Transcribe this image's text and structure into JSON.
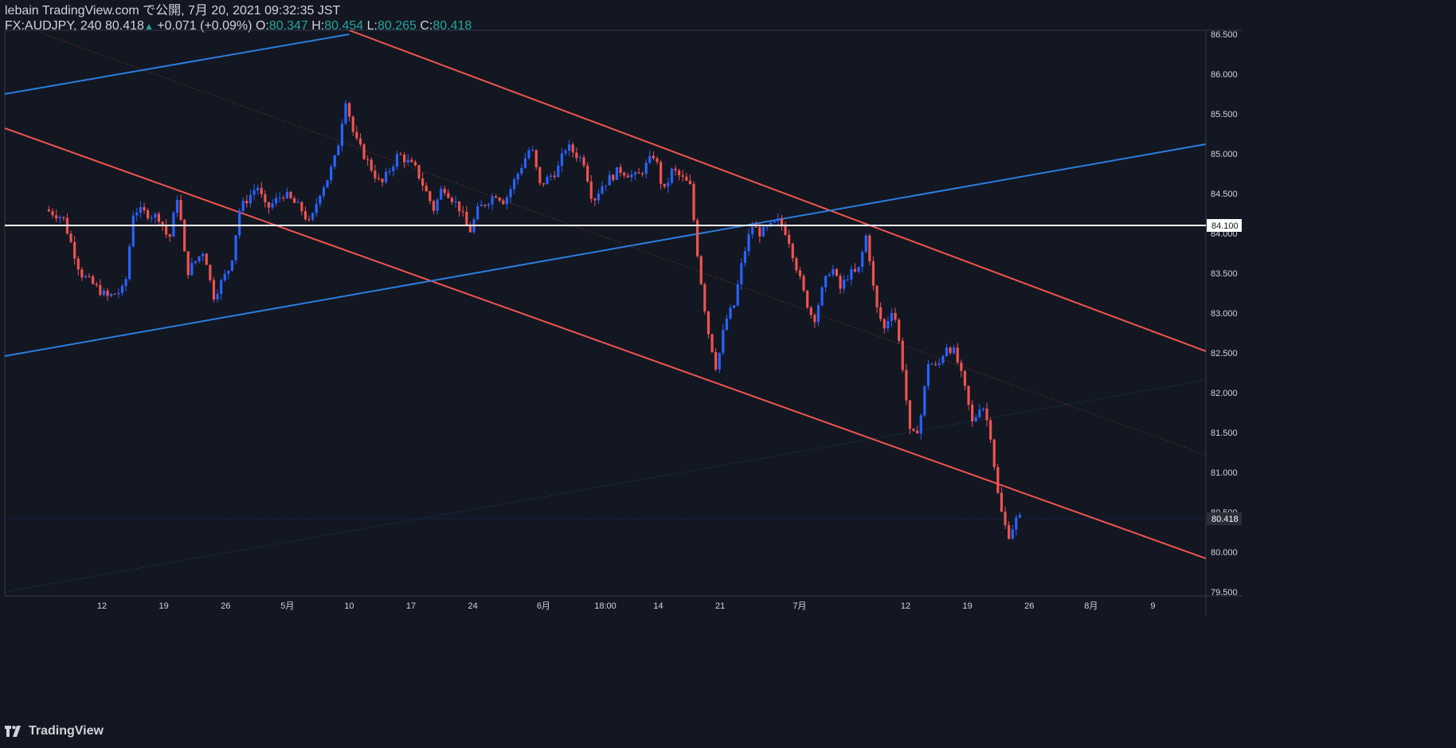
{
  "header": {
    "line1": "lebain TradingView.com で公開, 7月 20, 2021 09:32:35 JST",
    "symbol": "FX:AUDJPY, 240",
    "last": "80.418",
    "arrow": "▲",
    "change": "+0.071 (+0.09%)",
    "o_label": "O:",
    "o_value": "80.347",
    "h_label": "H:",
    "h_value": "80.454",
    "l_label": "L:",
    "l_value": "80.265",
    "c_label": "C:",
    "c_value": "80.418"
  },
  "footer": {
    "brand": "TradingView"
  },
  "colors": {
    "background": "#131722",
    "up": "#2962ff",
    "down": "#ef5350",
    "axis_text": "#d1d4dc",
    "trend_red": "#f0554f",
    "trend_blue": "#2b7de0"
  },
  "chart_data": {
    "type": "candlestick",
    "ylim": [
      79.45,
      86.55
    ],
    "y_ticks": [
      "79.500",
      "80.000",
      "80.500",
      "81.000",
      "81.500",
      "82.000",
      "82.500",
      "83.000",
      "83.500",
      "84.000",
      "84.500",
      "85.000",
      "85.500",
      "86.000",
      "86.500"
    ],
    "x_ticks": [
      "12",
      "19",
      "26",
      "5月",
      "10",
      "17",
      "24",
      "6月",
      "18:00",
      "14",
      "21",
      "7月",
      "12",
      "19",
      "26",
      "8月",
      "9"
    ],
    "horizontal_line": {
      "value": 84.1,
      "label": "84.100"
    },
    "last_price": {
      "value": 80.418,
      "label": "80.418"
    },
    "price_path": [
      [
        "2021-04-06",
        84.3
      ],
      [
        "2021-04-08",
        84.2
      ],
      [
        "2021-04-10",
        83.5
      ],
      [
        "2021-04-13",
        83.2
      ],
      [
        "2021-04-15",
        83.3
      ],
      [
        "2021-04-16",
        84.3
      ],
      [
        "2021-04-19",
        84.2
      ],
      [
        "2021-04-20",
        83.9
      ],
      [
        "2021-04-21",
        84.5
      ],
      [
        "2021-04-22",
        83.5
      ],
      [
        "2021-04-24",
        83.8
      ],
      [
        "2021-04-25",
        83.2
      ],
      [
        "2021-04-27",
        83.6
      ],
      [
        "2021-04-28",
        84.3
      ],
      [
        "2021-04-30",
        84.6
      ],
      [
        "2021-05-01",
        84.3
      ],
      [
        "2021-05-03",
        84.5
      ],
      [
        "2021-05-05",
        84.3
      ],
      [
        "2021-05-06",
        84.1
      ],
      [
        "2021-05-07",
        84.5
      ],
      [
        "2021-05-08",
        84.7
      ],
      [
        "2021-05-09",
        85.0
      ],
      [
        "2021-05-10",
        85.7
      ],
      [
        "2021-05-11",
        85.2
      ],
      [
        "2021-05-13",
        84.8
      ],
      [
        "2021-05-14",
        84.6
      ],
      [
        "2021-05-16",
        85.0
      ],
      [
        "2021-05-18",
        84.8
      ],
      [
        "2021-05-20",
        84.3
      ],
      [
        "2021-05-21",
        84.6
      ],
      [
        "2021-05-23",
        84.3
      ],
      [
        "2021-05-24",
        84.0
      ],
      [
        "2021-05-25",
        84.3
      ],
      [
        "2021-05-27",
        84.5
      ],
      [
        "2021-05-28",
        84.4
      ],
      [
        "2021-05-31",
        85.1
      ],
      [
        "2021-06-01",
        84.6
      ],
      [
        "2021-06-03",
        84.8
      ],
      [
        "2021-06-04",
        85.1
      ],
      [
        "2021-06-06",
        84.9
      ],
      [
        "2021-06-07",
        84.4
      ],
      [
        "2021-06-08",
        84.6
      ],
      [
        "2021-06-10",
        84.8
      ],
      [
        "2021-06-12",
        84.7
      ],
      [
        "2021-06-14",
        85.0
      ],
      [
        "2021-06-15",
        84.5
      ],
      [
        "2021-06-16",
        84.8
      ],
      [
        "2021-06-17",
        84.7
      ],
      [
        "2021-06-18",
        84.6
      ],
      [
        "2021-06-19",
        83.6
      ],
      [
        "2021-06-20",
        82.8
      ],
      [
        "2021-06-21",
        82.3
      ],
      [
        "2021-06-22",
        82.9
      ],
      [
        "2021-06-23",
        83.1
      ],
      [
        "2021-06-24",
        83.7
      ],
      [
        "2021-06-25",
        84.1
      ],
      [
        "2021-06-26",
        84.0
      ],
      [
        "2021-06-28",
        84.15
      ],
      [
        "2021-06-29",
        84.0
      ],
      [
        "2021-06-30",
        83.6
      ],
      [
        "2021-07-01",
        83.2
      ],
      [
        "2021-07-02",
        82.9
      ],
      [
        "2021-07-03",
        83.3
      ],
      [
        "2021-07-04",
        83.6
      ],
      [
        "2021-07-05",
        83.3
      ],
      [
        "2021-07-06",
        83.5
      ],
      [
        "2021-07-07",
        83.5
      ],
      [
        "2021-07-08",
        84.0
      ],
      [
        "2021-07-09",
        83.1
      ],
      [
        "2021-07-10",
        82.8
      ],
      [
        "2021-07-11",
        83.1
      ],
      [
        "2021-07-12",
        82.4
      ],
      [
        "2021-07-13",
        81.4
      ],
      [
        "2021-07-14",
        81.6
      ],
      [
        "2021-07-15",
        82.4
      ],
      [
        "2021-07-16",
        82.3
      ],
      [
        "2021-07-17",
        82.6
      ],
      [
        "2021-07-18",
        82.5
      ],
      [
        "2021-07-19",
        82.1
      ],
      [
        "2021-07-20",
        81.6
      ],
      [
        "2021-07-21",
        81.9
      ],
      [
        "2021-07-22",
        81.5
      ],
      [
        "2021-07-23",
        80.6
      ],
      [
        "2021-07-24",
        80.2
      ],
      [
        "2021-07-25",
        80.418
      ]
    ],
    "trendlines": [
      {
        "color": "red",
        "style": "solid",
        "from": [
          "2021-04-01",
          85.32
        ],
        "to": [
          "2021-08-15",
          79.92
        ]
      },
      {
        "color": "red",
        "style": "solid",
        "from": [
          "2021-05-10",
          86.55
        ],
        "to": [
          "2021-08-15",
          82.52
        ]
      },
      {
        "color": "red",
        "style": "dotted",
        "from": [
          "2021-04-05",
          86.52
        ],
        "to": [
          "2021-08-15",
          81.22
        ]
      },
      {
        "color": "blue",
        "style": "solid",
        "from": [
          "2021-04-01",
          85.75
        ],
        "to": [
          "2021-05-10",
          86.5
        ]
      },
      {
        "color": "blue",
        "style": "solid",
        "from": [
          "2021-04-01",
          82.46
        ],
        "to": [
          "2021-08-15",
          85.12
        ]
      },
      {
        "color": "blue",
        "style": "dotted",
        "from": [
          "2021-04-01",
          79.5
        ],
        "to": [
          "2021-08-15",
          82.16
        ]
      }
    ]
  }
}
